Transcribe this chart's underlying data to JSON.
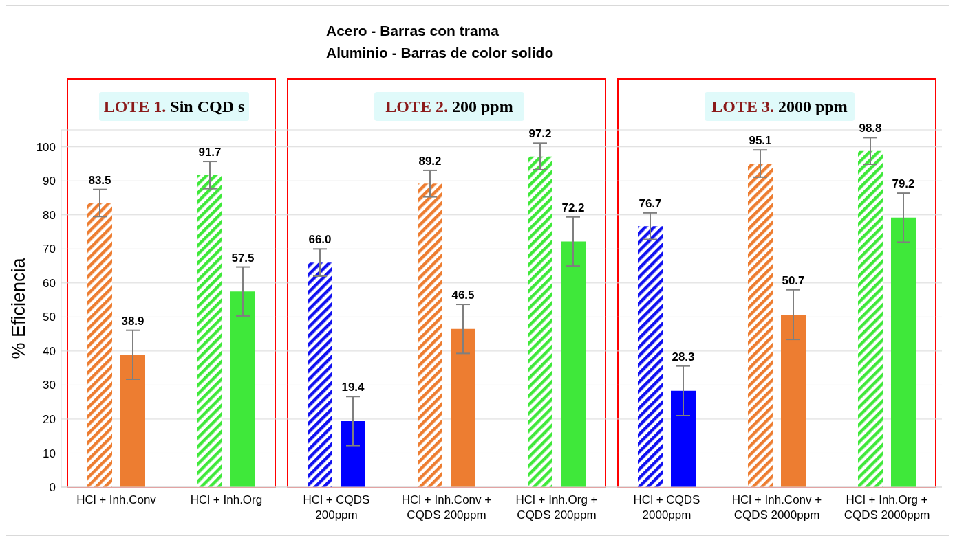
{
  "chart_data": {
    "type": "bar",
    "title": "Acero - Barras con trama",
    "subtitle": "Aluminio - Barras de color solido",
    "ylabel": "% Eficiencia",
    "categories": [
      "HCl + Inh.Conv",
      "HCl + Inh.Org",
      "HCl + CQDS 200ppm",
      "HCl + Inh.Conv + CQDS 200ppm",
      "HCl + Inh.Org + CQDS 200ppm",
      "HCl + CQDS 2000ppm",
      "HCl + Inh.Conv + CQDS 2000ppm",
      "HCl + Inh.Org + CQDS 2000ppm"
    ],
    "series": [
      {
        "colors": [
          "#ed7d31",
          "#3fe83a",
          "#1010f0",
          "#ed7d31",
          "#3fe83a",
          "#1010f0",
          "#ed7d31",
          "#3fe83a"
        ],
        "values": [
          83.5,
          91.7,
          66.0,
          89.2,
          97.2,
          76.7,
          95.1,
          98.8
        ],
        "errors": [
          4,
          4,
          4,
          3.9,
          3.9,
          3.9,
          4,
          3.9
        ],
        "value_labels": [
          "83.5",
          "91.7",
          "66.0",
          "89.2",
          "97.2",
          "76.7",
          "95.1",
          "98.8"
        ]
      },
      {
        "colors": [
          "#ed7d31",
          "#3fe83a",
          "#0000ff",
          "#ed7d31",
          "#3fe83a",
          "#0000ff",
          "#ed7d31",
          "#3fe83a"
        ],
        "values": [
          38.9,
          57.5,
          19.4,
          46.5,
          72.2,
          28.3,
          50.7,
          79.2
        ],
        "errors": [
          7.2,
          7.2,
          7.2,
          7.2,
          7.2,
          7.3,
          7.3,
          7.2
        ],
        "value_labels": [
          "38.9",
          "57.5",
          "19.4",
          "46.5",
          "72.2",
          "28.3",
          "50.7",
          "79.2"
        ]
      }
    ],
    "ylim": [
      0,
      105
    ],
    "yticks": [
      0,
      10,
      20,
      30,
      40,
      50,
      60,
      70,
      80,
      90,
      100
    ],
    "grid": "y",
    "legend": false,
    "annotations": [
      "LOTE 1. Sin CQD s",
      "LOTE 2. 200 ppm",
      "LOTE 3. 2000 ppm"
    ]
  }
}
